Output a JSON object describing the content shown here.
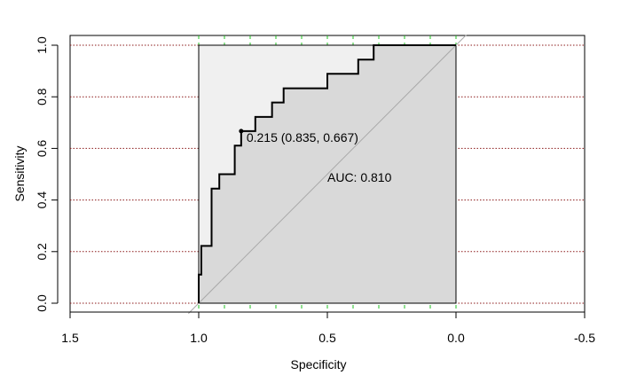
{
  "chart_data": {
    "type": "line",
    "xlabel": "Specificity",
    "ylabel": "Sensitivity",
    "xlim": [
      1.5,
      -0.5
    ],
    "ylim": [
      0,
      1
    ],
    "x_ticks": [
      1.5,
      1.0,
      0.5,
      0.0,
      -0.5
    ],
    "x_tick_labels": [
      "1.5",
      "1.0",
      "0.5",
      "0.0",
      "-0.5"
    ],
    "y_ticks": [
      0.0,
      0.2,
      0.4,
      0.6,
      0.8,
      1.0
    ],
    "y_tick_labels": [
      "0.0",
      "0.2",
      "0.4",
      "0.6",
      "0.8",
      "1.0"
    ],
    "grid": {
      "horizontal": {
        "at": [
          0,
          0.2,
          0.4,
          0.6,
          0.8,
          1.0
        ],
        "color": "#8b1a1a",
        "style": "dotted"
      },
      "vertical": {
        "at": [
          1.0,
          0.9,
          0.8,
          0.7,
          0.6,
          0.5,
          0.4,
          0.3,
          0.2,
          0.1,
          0.0
        ],
        "color": "#22c022",
        "style": "dashed"
      }
    },
    "series": [
      {
        "specificity": [
          1.0,
          1.0,
          0.99,
          0.99,
          0.95,
          0.95,
          0.92,
          0.92,
          0.86,
          0.86,
          0.835,
          0.835,
          0.78,
          0.78,
          0.715,
          0.715,
          0.67,
          0.67,
          0.5,
          0.5,
          0.38,
          0.38,
          0.32,
          0.32,
          0.0
        ],
        "sensitivity": [
          0.0,
          0.111,
          0.111,
          0.222,
          0.222,
          0.444,
          0.444,
          0.5,
          0.5,
          0.611,
          0.611,
          0.667,
          0.667,
          0.722,
          0.722,
          0.778,
          0.778,
          0.833,
          0.833,
          0.889,
          0.889,
          0.944,
          0.944,
          1.0,
          1.0
        ],
        "color": "#000000"
      }
    ],
    "best_point": {
      "specificity": 0.835,
      "sensitivity": 0.667,
      "label": "0.215 (0.835, 0.667)"
    },
    "auc_label": "AUC: 0.810",
    "diagonal_color": "#a9a9a9",
    "auc_fill": "#d9d9d9",
    "upper_fill": "#f0f0f0"
  }
}
